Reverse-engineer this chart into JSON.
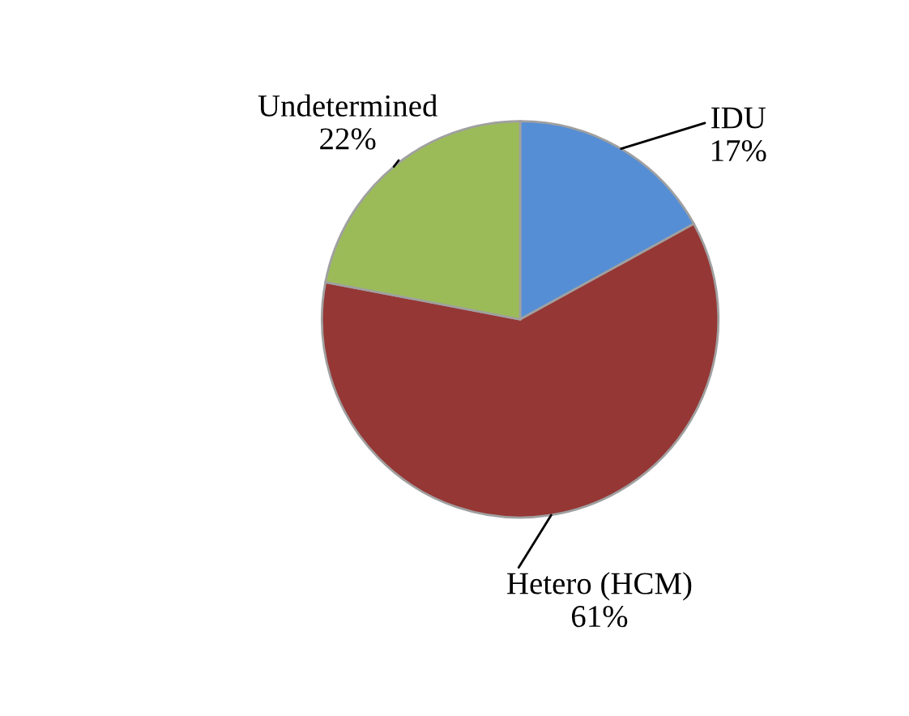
{
  "chart_data": {
    "type": "pie",
    "categories": [
      "IDU",
      "Hetero (HCM)",
      "Undetermined"
    ],
    "values": [
      17,
      61,
      22
    ],
    "colors": [
      "#558ed5",
      "#953735",
      "#9bbb59"
    ],
    "value_labels": [
      "17%",
      "61%",
      "22%"
    ]
  }
}
